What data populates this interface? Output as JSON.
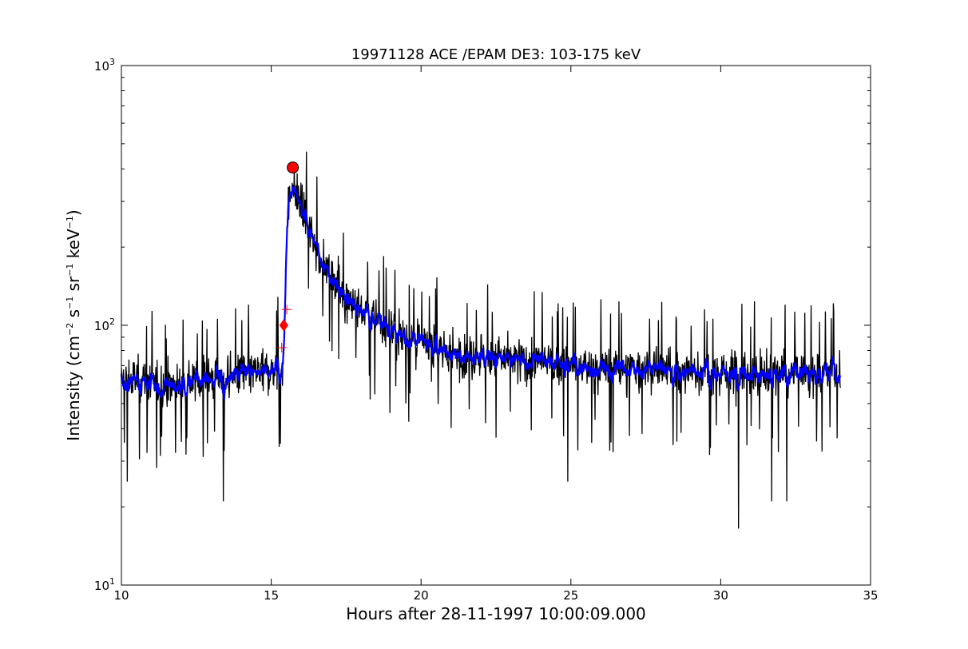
{
  "chart_data": {
    "type": "line",
    "title": "19971128 ACE /EPAM DE3: 103-175 keV",
    "xlabel": "Hours after 28-11-1997 10:00:09.000",
    "ylabel": {
      "main": "Intensity (cm",
      "exp1": "−2",
      "s": " s",
      "exp2": "−1",
      "sr": " sr",
      "exp3": "−1",
      "kev": " keV",
      "exp4": "−1",
      "close": ")"
    },
    "xlim": [
      10,
      35
    ],
    "ylim": [
      10,
      1000
    ],
    "yscale": "log",
    "xticks": [
      10,
      15,
      20,
      25,
      30,
      35
    ],
    "xtick_labels": [
      "10",
      "15",
      "20",
      "25",
      "30",
      "35"
    ],
    "yticks": [
      10,
      100,
      1000
    ],
    "ytick_labels": [
      {
        "base": "10",
        "exp": "1"
      },
      {
        "base": "10",
        "exp": "2"
      },
      {
        "base": "10",
        "exp": "3"
      }
    ],
    "grid": false,
    "legend": "none",
    "series": [
      {
        "color": "#000000",
        "description_points": [
          [
            10.0,
            60
          ],
          [
            10.5,
            62
          ],
          [
            11.0,
            60
          ],
          [
            11.5,
            58
          ],
          [
            12.0,
            60
          ],
          [
            12.5,
            62
          ],
          [
            13.0,
            63
          ],
          [
            13.5,
            62
          ],
          [
            14.0,
            65
          ],
          [
            14.5,
            65
          ],
          [
            15.0,
            67
          ],
          [
            15.4,
            70
          ],
          [
            15.45,
            100
          ],
          [
            15.5,
            200
          ],
          [
            15.6,
            320
          ],
          [
            15.75,
            340
          ],
          [
            16.0,
            280
          ],
          [
            16.5,
            200
          ],
          [
            17.0,
            155
          ],
          [
            17.5,
            130
          ],
          [
            18.0,
            115
          ],
          [
            18.5,
            105
          ],
          [
            19.0,
            95
          ],
          [
            20.0,
            85
          ],
          [
            21.0,
            78
          ],
          [
            22.0,
            76
          ],
          [
            23.0,
            74
          ],
          [
            24.0,
            72
          ],
          [
            25.0,
            70
          ],
          [
            26.0,
            68
          ],
          [
            27.0,
            68
          ],
          [
            28.0,
            67
          ],
          [
            29.0,
            66
          ],
          [
            30.0,
            66
          ],
          [
            31.0,
            65
          ],
          [
            32.0,
            65
          ],
          [
            33.0,
            65
          ],
          [
            34.0,
            65
          ]
        ],
        "noise": "high",
        "min_dips": [
          [
            13.4,
            21
          ],
          [
            30.6,
            16.5
          ],
          [
            31.7,
            21
          ],
          [
            32.2,
            21
          ],
          [
            24.9,
            25
          ],
          [
            10.2,
            25
          ]
        ]
      },
      {
        "color": "#0000ff",
        "noise": "low"
      }
    ],
    "markers": [
      {
        "symbol": "circle",
        "color": "#ff0000",
        "x": 15.72,
        "y": 405
      },
      {
        "symbol": "diamond",
        "color": "#ff0000",
        "x": 15.42,
        "y": 100
      },
      {
        "symbol": "plus",
        "color": "#ff0000",
        "x": 15.52,
        "y": 115
      },
      {
        "symbol": "plus",
        "color": "#ff0000",
        "x": 15.35,
        "y": 82
      }
    ]
  }
}
